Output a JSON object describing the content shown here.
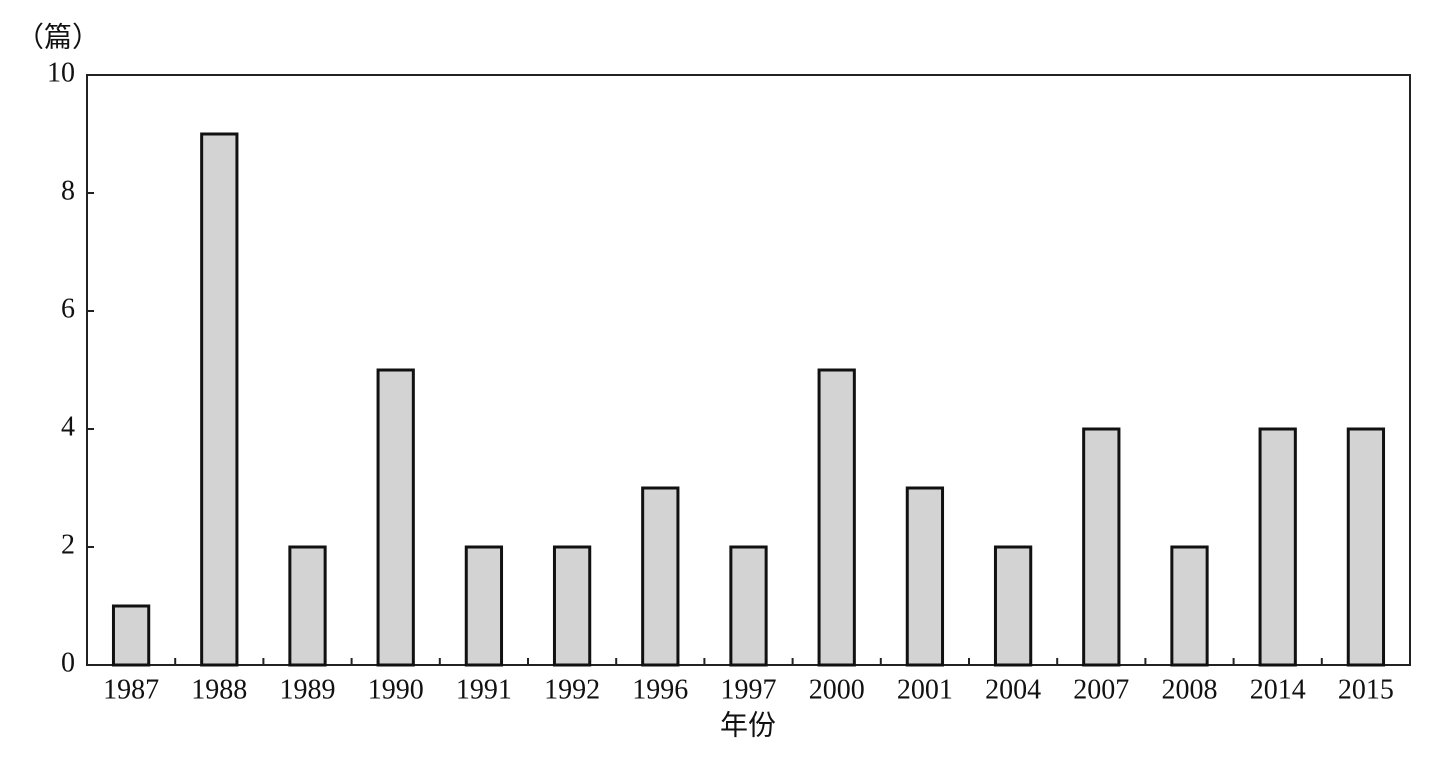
{
  "chart_data": {
    "type": "bar",
    "y_label": "（篇）",
    "x_label": "年份",
    "categories": [
      "1987",
      "1988",
      "1989",
      "1990",
      "1991",
      "1992",
      "1996",
      "1997",
      "2000",
      "2001",
      "2004",
      "2007",
      "2008",
      "2014",
      "2015"
    ],
    "values": [
      1,
      9,
      2,
      5,
      2,
      2,
      3,
      2,
      5,
      3,
      2,
      4,
      2,
      4,
      4
    ],
    "color": "#d3d3d3",
    "ylim": [
      0,
      10
    ],
    "yticks": [
      0,
      2,
      4,
      6,
      8,
      10
    ],
    "grid": false
  }
}
